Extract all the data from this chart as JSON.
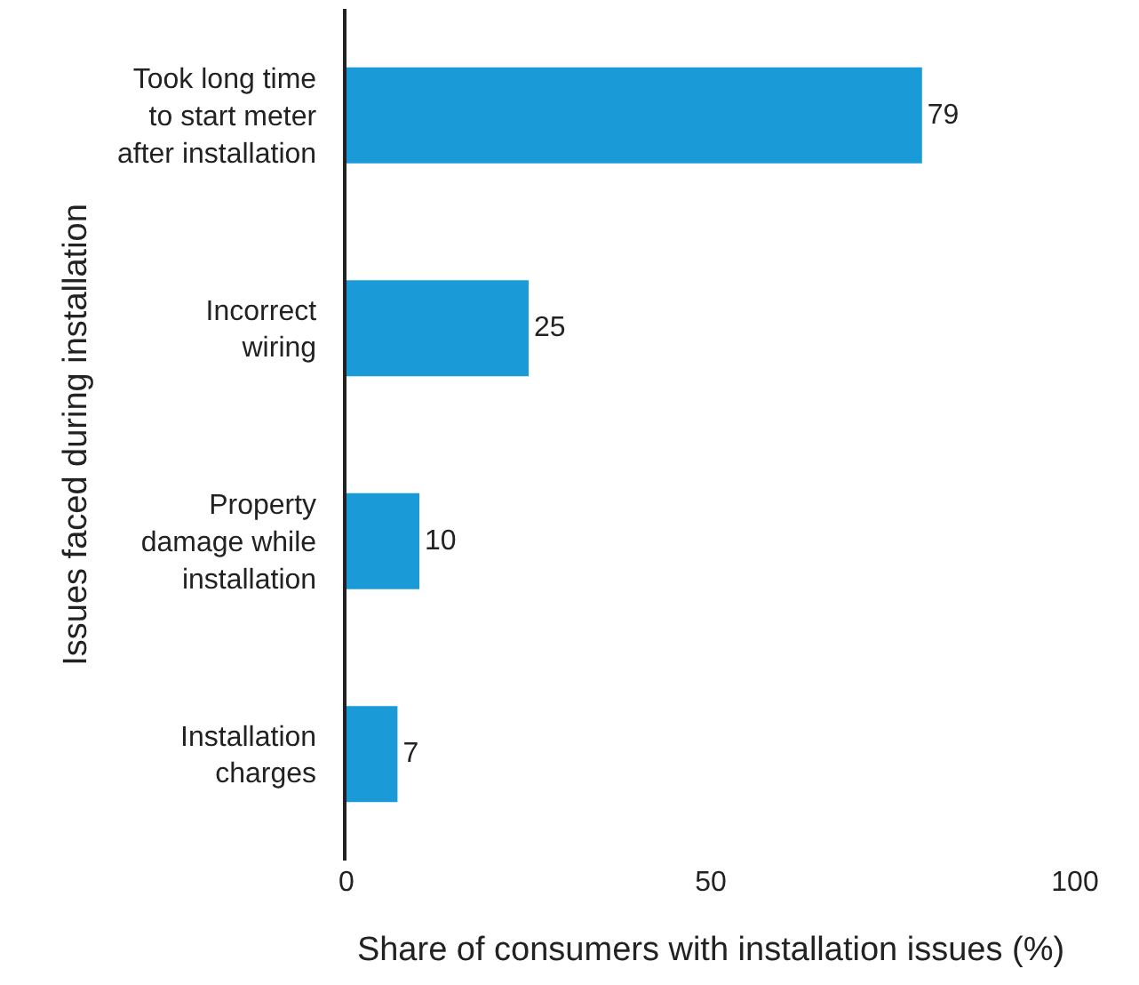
{
  "chart_data": {
    "type": "bar",
    "orientation": "horizontal",
    "xlabel": "Share of consumers with installation issues (%)",
    "ylabel": "Issues faced during installation",
    "categories": [
      "Took long time\nto start meter\nafter installation",
      "Incorrect\nwiring",
      "Property\ndamage while\ninstallation",
      "Installation\ncharges"
    ],
    "values": [
      79,
      25,
      10,
      7
    ],
    "color": "#1a9bd7",
    "xlim": [
      0,
      100
    ],
    "xticks": [
      0,
      50,
      100
    ],
    "data_labels": true
  }
}
